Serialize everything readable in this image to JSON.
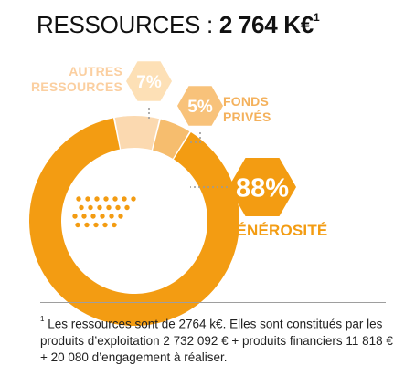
{
  "title": {
    "prefix": "RESSOURCES : ",
    "total": "2 764 K€",
    "sup": "1"
  },
  "chart_data": {
    "type": "pie",
    "variant": "donut",
    "title": "RESSOURCES : 2 764 K€",
    "slices": [
      {
        "label_lines": [
          "AUTRES",
          "RESSOURCES"
        ],
        "value": 7,
        "value_label": "7%",
        "color": "#fbd9b0",
        "label_color": "#fbcfa0",
        "hex_color": "#fde0b6"
      },
      {
        "label_lines": [
          "FONDS",
          "PRIVÉS"
        ],
        "value": 5,
        "value_label": "5%",
        "color": "#f6bd6e",
        "label_color": "#f4b15c",
        "hex_color": "#f8c27a"
      },
      {
        "label_lines": [
          "GÉNÉROSITÉ"
        ],
        "value": 88,
        "value_label": "88%",
        "color": "#f39c12",
        "label_color": "#f39c12",
        "hex_color": "#f39c12"
      }
    ]
  },
  "footnote": {
    "mark": "1",
    "text": " Les ressources sont de 2764 k€. Elles sont constitués par les produits d’exploitation 2 732 092 € + produits financiers 11 818 € + 20 080 d’engagement à réaliser."
  }
}
